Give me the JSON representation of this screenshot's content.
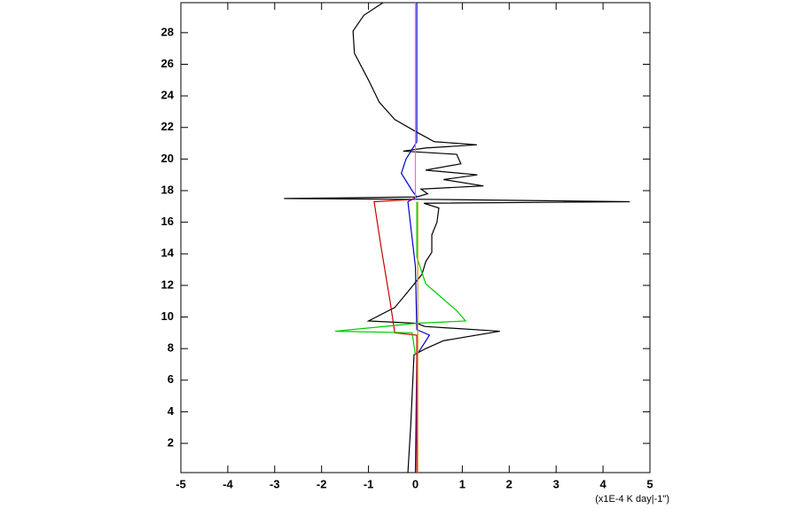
{
  "chart_data": {
    "type": "line",
    "xlabel": "(x1E-4 K day|-1\")",
    "xlim": [
      -5,
      5
    ],
    "xticks": [
      -5,
      -4,
      -3,
      -2,
      -1,
      0,
      1,
      2,
      3,
      4,
      5
    ],
    "ylim": [
      0.15,
      29.9
    ],
    "yticks": [
      2,
      4,
      6,
      8,
      10,
      12,
      14,
      16,
      18,
      20,
      22,
      24,
      26,
      28
    ],
    "grid": false,
    "series": [
      {
        "color": "#000000",
        "x": [
          -0.16,
          -0.1,
          -0.03,
          0.22,
          0.6,
          1.8,
          0.2,
          0.03,
          -1.0,
          -0.44,
          -0.16,
          0.14,
          0.22,
          0.35,
          0.35,
          0.46,
          0.5,
          0.18,
          4.57,
          0.2,
          -2.8,
          0.03,
          0.26,
          0.12,
          1.45,
          0.6,
          1.32,
          0.22,
          0.97,
          0.88,
          -0.26,
          0.22,
          1.31,
          0.4,
          0.03,
          -0.44,
          -0.77,
          -1.0,
          -1.3,
          -1.33,
          -1.1,
          -0.69
        ],
        "values": [
          0.15,
          3.1,
          7.6,
          8.0,
          8.5,
          9.1,
          9.4,
          9.6,
          9.75,
          10.6,
          11.6,
          12.7,
          13.5,
          14.1,
          15.2,
          16.0,
          16.9,
          17.2,
          17.3,
          17.45,
          17.5,
          17.6,
          17.8,
          18.1,
          18.3,
          18.7,
          19.0,
          19.3,
          19.7,
          20.3,
          20.5,
          20.7,
          20.9,
          21.1,
          21.7,
          22.5,
          23.6,
          25.0,
          26.7,
          28.1,
          29.1,
          29.9
        ]
      },
      {
        "color": "#0000cc",
        "x": [
          0,
          0.03,
          0.3,
          0.03,
          0,
          -0.16,
          0.03,
          -0.07,
          -0.3,
          -0.2,
          0.03,
          0.03
        ],
        "values": [
          0.15,
          7.6,
          8.85,
          9.2,
          13.2,
          17.3,
          17.6,
          18.0,
          19.1,
          20.0,
          21.1,
          29.9
        ]
      },
      {
        "color": "#cc0000",
        "x": [
          0.03,
          0.03,
          -0.44,
          -0.54,
          -0.73,
          -0.88,
          0
        ],
        "values": [
          0.15,
          8.85,
          9.0,
          11.0,
          14.4,
          17.3,
          17.45
        ]
      },
      {
        "color": "#00cc00",
        "x": [
          0,
          -0.07,
          -1.71,
          0.03,
          1.07,
          0.88,
          0.22,
          0.03,
          0.03
        ],
        "values": [
          7.6,
          9.0,
          9.1,
          9.6,
          9.75,
          10.4,
          12.1,
          13.8,
          17.3
        ]
      },
      {
        "color": "#cc9900",
        "x": [
          0.05,
          0.05
        ],
        "values": [
          0.15,
          17.3
        ]
      },
      {
        "color": "#ff66cc",
        "x": [
          0,
          0
        ],
        "values": [
          17.45,
          29.9
        ]
      }
    ]
  }
}
